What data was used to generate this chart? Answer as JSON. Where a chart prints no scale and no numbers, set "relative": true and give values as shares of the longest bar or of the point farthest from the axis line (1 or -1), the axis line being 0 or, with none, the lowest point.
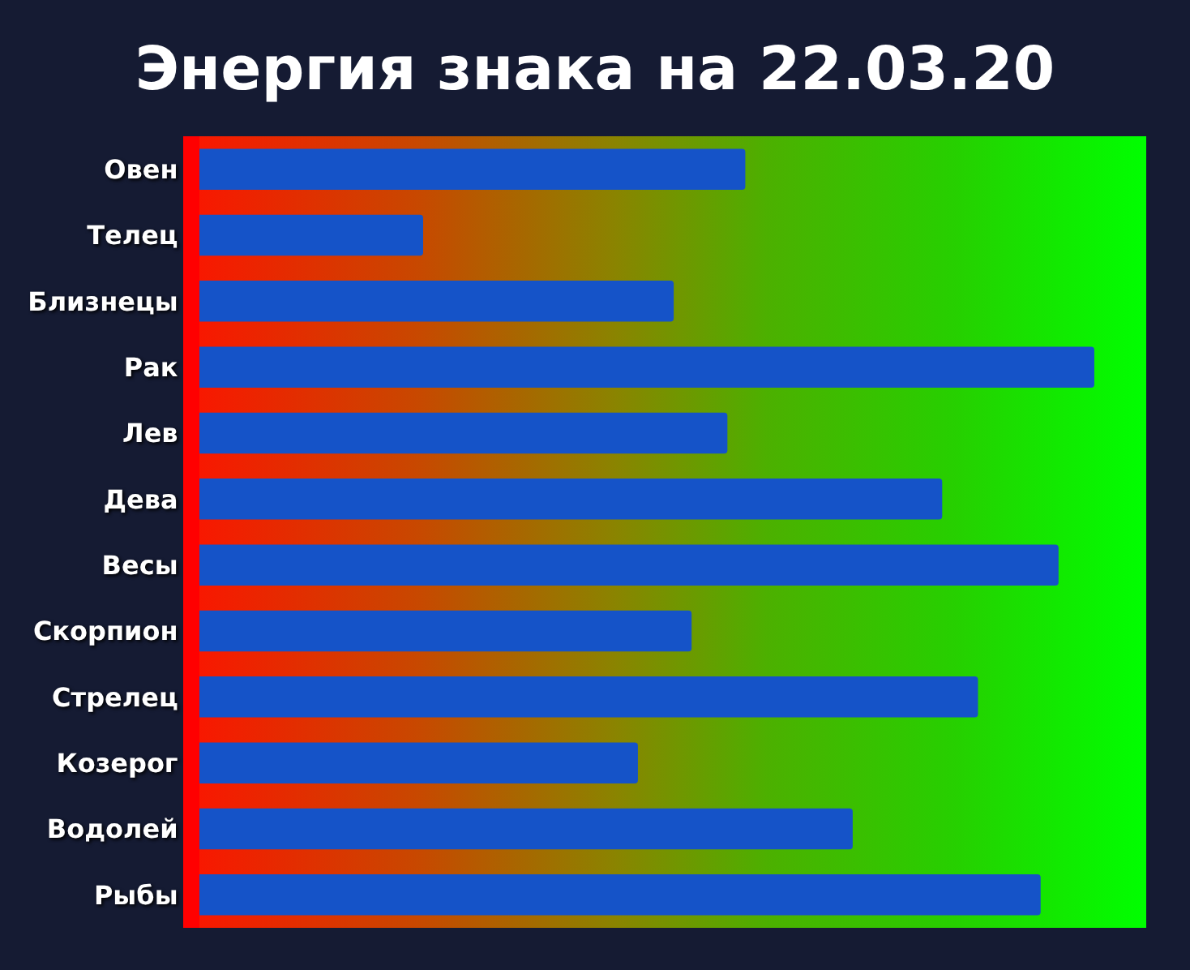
{
  "chart_data": {
    "type": "bar",
    "orientation": "horizontal",
    "relative": true,
    "title": "Энергия знака на 22.03.20",
    "categories": [
      "Овен",
      "Телец",
      "Близнецы",
      "Рак",
      "Лев",
      "Дева",
      "Весы",
      "Скорпион",
      "Стрелец",
      "Козерог",
      "Водолей",
      "Рыбы"
    ],
    "values": [
      0.61,
      0.25,
      0.53,
      1,
      0.59,
      0.83,
      0.96,
      0.55,
      0.87,
      0.49,
      0.73,
      0.94
    ],
    "color": "#1553c8"
  }
}
